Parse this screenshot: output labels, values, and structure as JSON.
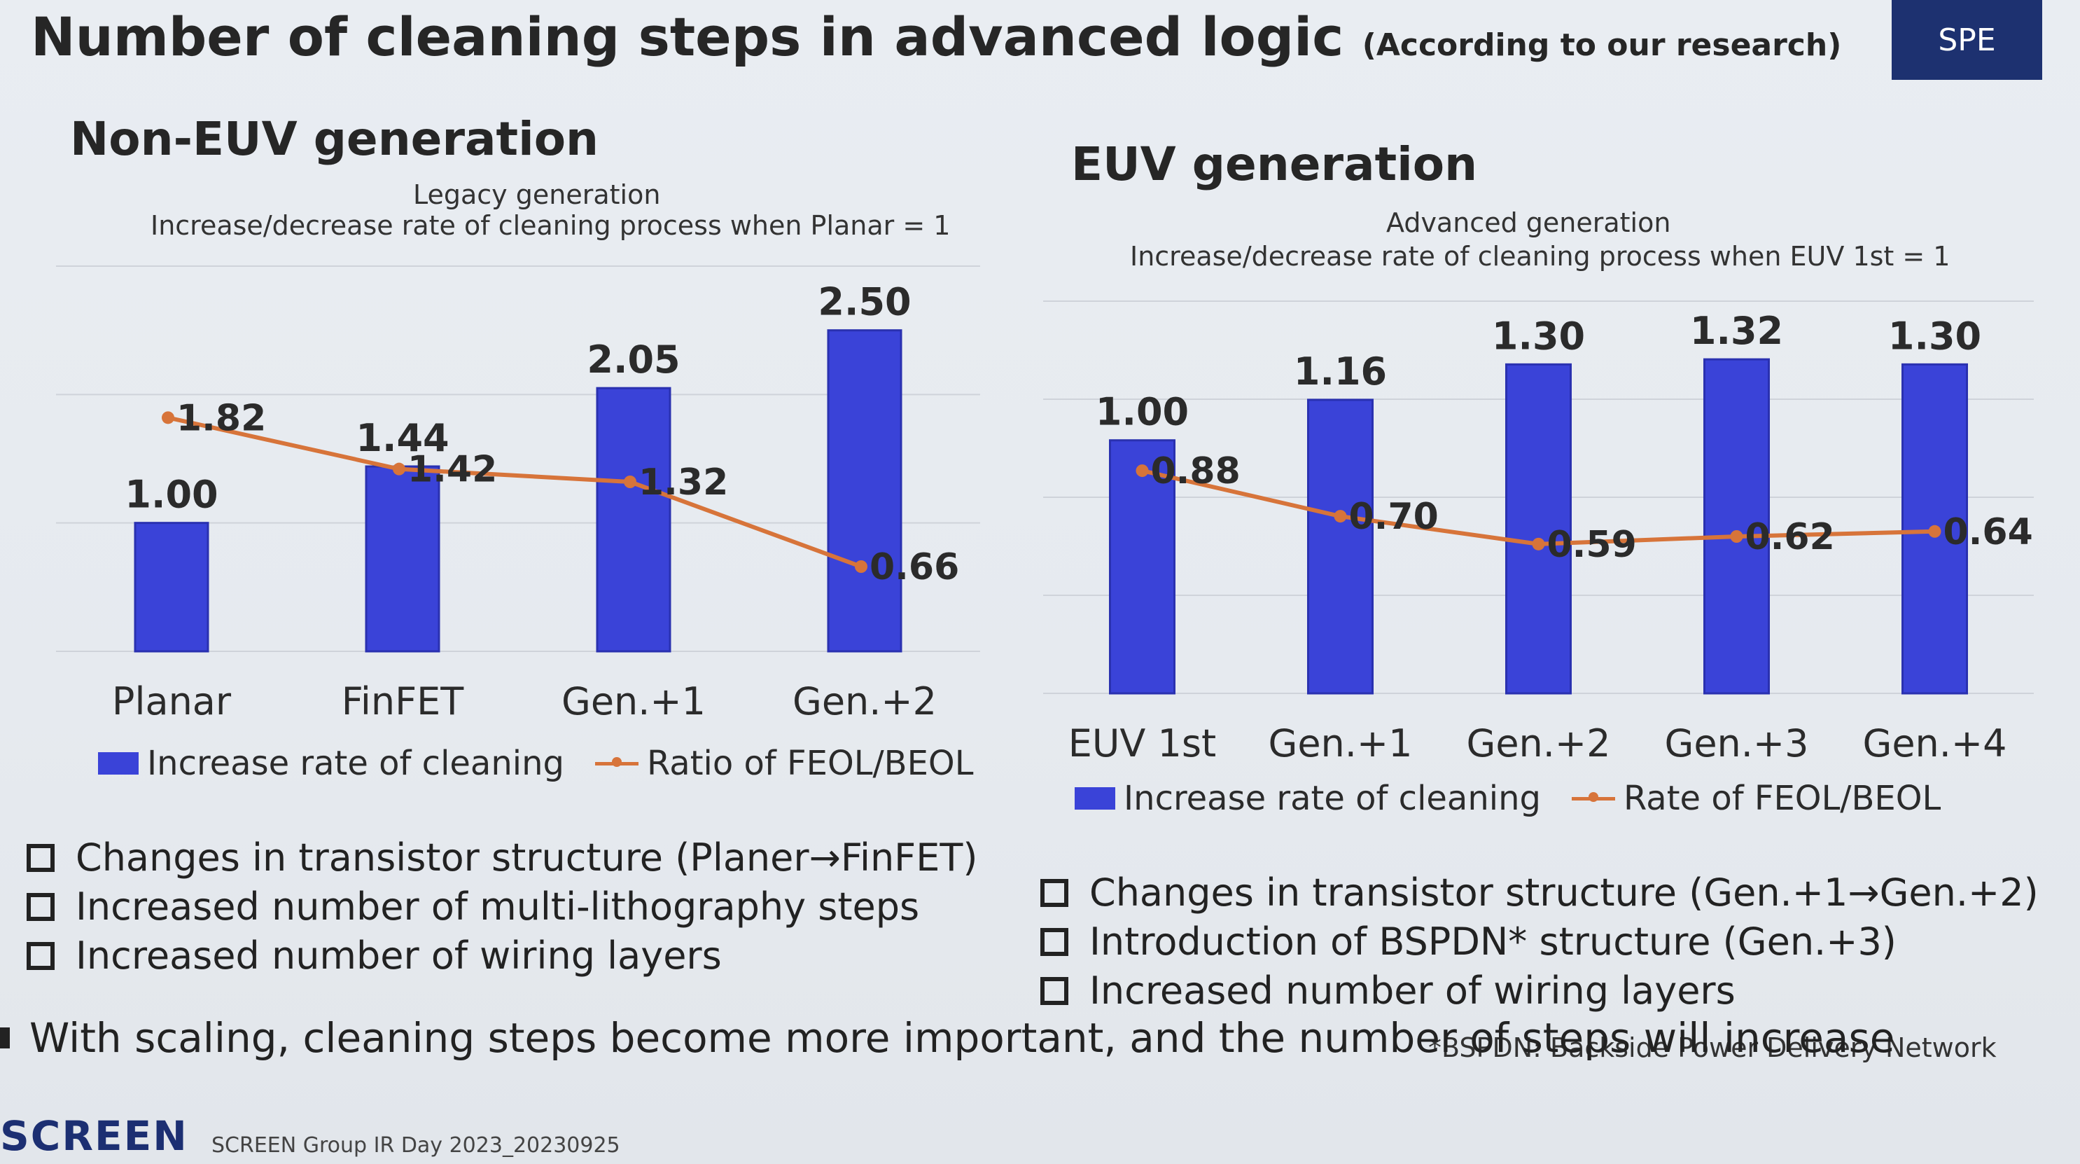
{
  "header": {
    "title": "Number of cleaning steps in advanced logic",
    "title_note": "(According to our research)",
    "badge": "SPE"
  },
  "charts": {
    "left": {
      "panel_title": "Non-EUV generation",
      "subtitle1": "Legacy generation",
      "subtitle2": "Increase/decrease rate of cleaning process when Planar = 1",
      "legend_bar": "Increase rate of cleaning",
      "legend_line": "Ratio of FEOL/BEOL"
    },
    "right": {
      "panel_title": "EUV generation",
      "subtitle1": "Advanced generation",
      "subtitle2": "Increase/decrease rate of cleaning process when EUV 1st = 1",
      "legend_bar": "Increase rate of cleaning",
      "legend_line": "Rate of FEOL/BEOL"
    }
  },
  "chart_data": [
    {
      "type": "bar",
      "title": "Non-EUV generation",
      "categories": [
        "Planar",
        "FinFET",
        "Gen.+1",
        "Gen.+2"
      ],
      "ylim": [
        0,
        3
      ],
      "grid": true,
      "legend": "bottom",
      "series": [
        {
          "name": "Increase rate of cleaning",
          "type": "bar",
          "color": "#3a43d8",
          "values": [
            1.0,
            1.44,
            2.05,
            2.5
          ],
          "labels": [
            "1.00",
            "1.44",
            "2.05",
            "2.50"
          ]
        },
        {
          "name": "Ratio of FEOL/BEOL",
          "type": "line",
          "color": "#d7743a",
          "values": [
            1.82,
            1.42,
            1.32,
            0.66
          ],
          "labels": [
            "1.82",
            "1.42",
            "1.32",
            "0.66"
          ]
        }
      ]
    },
    {
      "type": "bar",
      "title": "EUV generation",
      "categories": [
        "EUV 1st",
        "Gen.+1",
        "Gen.+2",
        "Gen.+3",
        "Gen.+4"
      ],
      "ylim": [
        0,
        1.55
      ],
      "grid": true,
      "legend": "bottom",
      "series": [
        {
          "name": "Increase rate of cleaning",
          "type": "bar",
          "color": "#3a43d8",
          "values": [
            1.0,
            1.16,
            1.3,
            1.32,
            1.3
          ],
          "labels": [
            "1.00",
            "1.16",
            "1.30",
            "1.32",
            "1.30"
          ]
        },
        {
          "name": "Rate of FEOL/BEOL",
          "type": "line",
          "color": "#d7743a",
          "values": [
            0.88,
            0.7,
            0.59,
            0.62,
            0.64
          ],
          "labels": [
            "0.88",
            "0.70",
            "0.59",
            "0.62",
            "0.64"
          ]
        }
      ]
    }
  ],
  "bullets_left": [
    "Changes in transistor structure (Planer→FinFET)",
    "Increased number of multi-lithography steps",
    "Increased number of wiring layers"
  ],
  "bullets_right": [
    "Changes in transistor structure (Gen.+1→Gen.+2)",
    "Introduction of BSPDN* structure (Gen.+3)",
    "Increased number of wiring layers"
  ],
  "footnote": "*BSPDN: Backside Power Delivery Network",
  "conclusion": "With scaling, cleaning steps become more important, and the number of steps will increase",
  "footer": {
    "logo": "SCREEN",
    "event": "SCREEN Group IR Day 2023_20230925"
  }
}
